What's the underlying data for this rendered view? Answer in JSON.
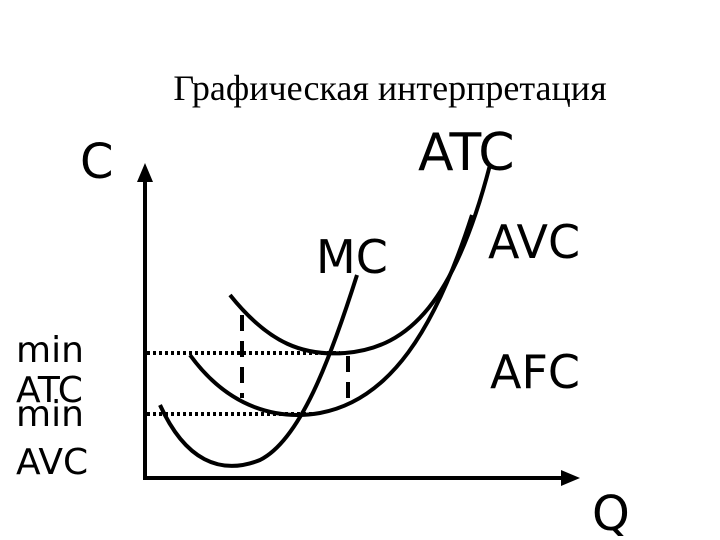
{
  "title": "Графическая интерпретация",
  "axes": {
    "y_label": "C",
    "x_label": "Q"
  },
  "curves": [
    {
      "label": "ATC"
    },
    {
      "label": "MC"
    },
    {
      "label": "AVC"
    },
    {
      "label": "AFC"
    }
  ],
  "markers": [
    {
      "lines": [
        "min",
        "ATC"
      ]
    },
    {
      "lines": [
        "min",
        "AVC"
      ]
    }
  ]
}
